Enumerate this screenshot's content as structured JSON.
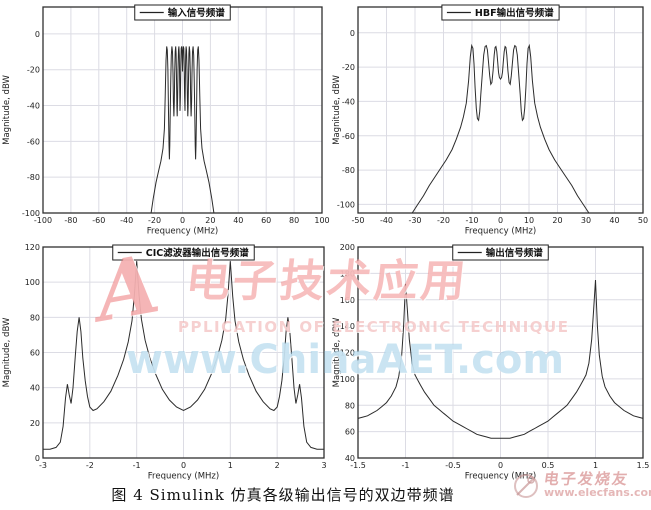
{
  "page": {
    "caption": "图 4  Simulink 仿真各级输出信号的双边带频谱"
  },
  "watermark_center": {
    "big_a": "A",
    "cn": "电子技术应用",
    "en": "PPLICATION OF ELECTRONIC TECHNIQUE",
    "url": "www.ChinaAET.com",
    "pink_color": "#f29494",
    "blue_color": "#9ecee8"
  },
  "watermark_corner": {
    "cn": "电子发烧友",
    "url": "www.elecfans.com",
    "color": "#d68c8c"
  },
  "chart_data": [
    {
      "id": "input-spectrum",
      "type": "line",
      "legend": "输入信号频谱",
      "xlabel": "Frequency (MHz)",
      "ylabel": "Magnitude, dBW",
      "xlim": [
        -100,
        100
      ],
      "ylim": [
        -100,
        15
      ],
      "xticks": [
        -100,
        -80,
        -60,
        -40,
        -20,
        0,
        20,
        40,
        60,
        80,
        100
      ],
      "yticks": [
        -100,
        -80,
        -60,
        -40,
        -20,
        0
      ],
      "grid": true,
      "legend_position": "top-center",
      "line_color": "#2b2b2b",
      "points": [
        [
          -22.5,
          -100
        ],
        [
          -21,
          -92
        ],
        [
          -19,
          -83
        ],
        [
          -17,
          -76
        ],
        [
          -15.5,
          -71
        ],
        [
          -14,
          -64
        ],
        [
          -13,
          -53
        ],
        [
          -12.4,
          -35
        ],
        [
          -11.8,
          -15
        ],
        [
          -11.3,
          -7
        ],
        [
          -10.9,
          -9
        ],
        [
          -10.5,
          -20
        ],
        [
          -10.1,
          -40
        ],
        [
          -9.7,
          -62
        ],
        [
          -9.4,
          -70
        ],
        [
          -9.1,
          -62
        ],
        [
          -8.8,
          -45
        ],
        [
          -8.4,
          -25
        ],
        [
          -8,
          -12
        ],
        [
          -7.6,
          -7
        ],
        [
          -7.2,
          -10
        ],
        [
          -6.8,
          -22
        ],
        [
          -6.5,
          -38
        ],
        [
          -6.2,
          -46
        ],
        [
          -5.9,
          -38
        ],
        [
          -5.6,
          -22
        ],
        [
          -5.2,
          -10
        ],
        [
          -4.9,
          -7
        ],
        [
          -4.6,
          -11
        ],
        [
          -4.3,
          -25
        ],
        [
          -4,
          -41
        ],
        [
          -3.8,
          -46
        ],
        [
          -3.5,
          -36
        ],
        [
          -3.2,
          -20
        ],
        [
          -2.9,
          -9
        ],
        [
          -2.6,
          -7
        ],
        [
          -2.3,
          -12
        ],
        [
          -2,
          -28
        ],
        [
          -1.8,
          -43
        ],
        [
          -1.5,
          -35
        ],
        [
          -1.2,
          -18
        ],
        [
          -0.9,
          -8
        ],
        [
          -0.6,
          -7
        ],
        [
          -0.3,
          -10
        ],
        [
          0,
          -21
        ],
        [
          0.3,
          -10
        ],
        [
          0.6,
          -7
        ],
        [
          0.9,
          -8
        ],
        [
          1.2,
          -18
        ],
        [
          1.5,
          -35
        ],
        [
          1.8,
          -43
        ],
        [
          2,
          -28
        ],
        [
          2.3,
          -12
        ],
        [
          2.6,
          -7
        ],
        [
          2.9,
          -9
        ],
        [
          3.2,
          -20
        ],
        [
          3.5,
          -36
        ],
        [
          3.8,
          -46
        ],
        [
          4,
          -41
        ],
        [
          4.3,
          -25
        ],
        [
          4.6,
          -11
        ],
        [
          4.9,
          -7
        ],
        [
          5.2,
          -10
        ],
        [
          5.6,
          -22
        ],
        [
          5.9,
          -38
        ],
        [
          6.2,
          -46
        ],
        [
          6.5,
          -38
        ],
        [
          6.8,
          -22
        ],
        [
          7.2,
          -10
        ],
        [
          7.6,
          -7
        ],
        [
          8,
          -12
        ],
        [
          8.4,
          -25
        ],
        [
          8.8,
          -45
        ],
        [
          9.1,
          -62
        ],
        [
          9.4,
          -70
        ],
        [
          9.7,
          -62
        ],
        [
          10.1,
          -40
        ],
        [
          10.5,
          -20
        ],
        [
          10.9,
          -9
        ],
        [
          11.3,
          -7
        ],
        [
          11.8,
          -15
        ],
        [
          12.4,
          -35
        ],
        [
          13,
          -53
        ],
        [
          14,
          -64
        ],
        [
          15.5,
          -71
        ],
        [
          17,
          -76
        ],
        [
          19,
          -83
        ],
        [
          21,
          -92
        ],
        [
          22.5,
          -100
        ]
      ]
    },
    {
      "id": "hbf-output-spectrum",
      "type": "line",
      "legend": "HBF输出信号频谱",
      "xlabel": "Frequency (MHz)",
      "ylabel": "Magnitude, dBW",
      "xlim": [
        -50,
        50
      ],
      "ylim": [
        -105,
        15
      ],
      "xticks": [
        -50,
        -40,
        -30,
        -20,
        -10,
        0,
        10,
        20,
        30,
        40,
        50
      ],
      "yticks": [
        -100,
        -80,
        -60,
        -40,
        -20,
        0
      ],
      "grid": true,
      "legend_position": "top-center",
      "line_color": "#2b2b2b",
      "points": [
        [
          -31,
          -105
        ],
        [
          -29,
          -100
        ],
        [
          -27,
          -95
        ],
        [
          -25,
          -89
        ],
        [
          -23,
          -84
        ],
        [
          -21,
          -79
        ],
        [
          -19,
          -74
        ],
        [
          -17,
          -68
        ],
        [
          -15.5,
          -62
        ],
        [
          -14,
          -55
        ],
        [
          -13,
          -49
        ],
        [
          -12,
          -41
        ],
        [
          -11.2,
          -28
        ],
        [
          -10.6,
          -14
        ],
        [
          -10.1,
          -7.5
        ],
        [
          -9.7,
          -9
        ],
        [
          -9.3,
          -18
        ],
        [
          -8.9,
          -32
        ],
        [
          -8.5,
          -44
        ],
        [
          -8.1,
          -50
        ],
        [
          -7.7,
          -51
        ],
        [
          -7.3,
          -46
        ],
        [
          -6.9,
          -36
        ],
        [
          -6.4,
          -24
        ],
        [
          -5.9,
          -13
        ],
        [
          -5.4,
          -8
        ],
        [
          -5,
          -7.5
        ],
        [
          -4.6,
          -10
        ],
        [
          -4.2,
          -17
        ],
        [
          -3.8,
          -25
        ],
        [
          -3.4,
          -30
        ],
        [
          -3,
          -29
        ],
        [
          -2.6,
          -22
        ],
        [
          -2.2,
          -13
        ],
        [
          -1.9,
          -8.5
        ],
        [
          -1.6,
          -8
        ],
        [
          -1.3,
          -11
        ],
        [
          -1,
          -17
        ],
        [
          -0.7,
          -23
        ],
        [
          -0.4,
          -26
        ],
        [
          0,
          -27
        ],
        [
          0.4,
          -26
        ],
        [
          0.7,
          -23
        ],
        [
          1,
          -17
        ],
        [
          1.3,
          -11
        ],
        [
          1.6,
          -8
        ],
        [
          1.9,
          -8.5
        ],
        [
          2.2,
          -13
        ],
        [
          2.6,
          -22
        ],
        [
          3,
          -29
        ],
        [
          3.4,
          -30
        ],
        [
          3.8,
          -25
        ],
        [
          4.2,
          -17
        ],
        [
          4.6,
          -10
        ],
        [
          5,
          -7.5
        ],
        [
          5.4,
          -8
        ],
        [
          5.9,
          -13
        ],
        [
          6.4,
          -24
        ],
        [
          6.9,
          -36
        ],
        [
          7.3,
          -46
        ],
        [
          7.7,
          -51
        ],
        [
          8.1,
          -50
        ],
        [
          8.5,
          -44
        ],
        [
          8.9,
          -32
        ],
        [
          9.3,
          -18
        ],
        [
          9.7,
          -9
        ],
        [
          10.1,
          -7.5
        ],
        [
          10.6,
          -14
        ],
        [
          11.2,
          -28
        ],
        [
          12,
          -41
        ],
        [
          13,
          -49
        ],
        [
          14,
          -55
        ],
        [
          15.5,
          -62
        ],
        [
          17,
          -68
        ],
        [
          19,
          -74
        ],
        [
          21,
          -79
        ],
        [
          23,
          -84
        ],
        [
          25,
          -89
        ],
        [
          27,
          -95
        ],
        [
          29,
          -100
        ],
        [
          31,
          -105
        ]
      ]
    },
    {
      "id": "cic-output-spectrum",
      "type": "line",
      "legend": "CIC滤波器输出信号频谱",
      "xlabel": "Frequency (MHz)",
      "ylabel": "Magnitude, dBW",
      "xlim": [
        -3,
        3
      ],
      "ylim": [
        0,
        120
      ],
      "xticks": [
        -3,
        -2,
        -1,
        0,
        1,
        2,
        3
      ],
      "yticks": [
        0,
        20,
        40,
        60,
        80,
        100,
        120
      ],
      "grid": true,
      "legend_position": "top-center",
      "line_color": "#2b2b2b",
      "points": [
        [
          -3,
          5
        ],
        [
          -2.85,
          5
        ],
        [
          -2.72,
          6
        ],
        [
          -2.63,
          9
        ],
        [
          -2.57,
          18
        ],
        [
          -2.52,
          34
        ],
        [
          -2.48,
          42
        ],
        [
          -2.44,
          36
        ],
        [
          -2.4,
          31
        ],
        [
          -2.36,
          40
        ],
        [
          -2.31,
          58
        ],
        [
          -2.27,
          72
        ],
        [
          -2.23,
          80
        ],
        [
          -2.19,
          72
        ],
        [
          -2.15,
          57
        ],
        [
          -2.1,
          44
        ],
        [
          -2.05,
          35
        ],
        [
          -2,
          29
        ],
        [
          -1.93,
          27
        ],
        [
          -1.85,
          28
        ],
        [
          -1.7,
          32
        ],
        [
          -1.55,
          38
        ],
        [
          -1.4,
          47
        ],
        [
          -1.28,
          56
        ],
        [
          -1.18,
          66
        ],
        [
          -1.1,
          78
        ],
        [
          -1.05,
          92
        ],
        [
          -1,
          112
        ],
        [
          -0.95,
          93
        ],
        [
          -0.9,
          79
        ],
        [
          -0.82,
          67
        ],
        [
          -0.72,
          57
        ],
        [
          -0.6,
          48
        ],
        [
          -0.45,
          39
        ],
        [
          -0.3,
          33
        ],
        [
          -0.15,
          29
        ],
        [
          0,
          27
        ],
        [
          0.15,
          29
        ],
        [
          0.3,
          33
        ],
        [
          0.45,
          39
        ],
        [
          0.6,
          48
        ],
        [
          0.72,
          57
        ],
        [
          0.82,
          67
        ],
        [
          0.9,
          79
        ],
        [
          0.95,
          93
        ],
        [
          1,
          112
        ],
        [
          1.05,
          92
        ],
        [
          1.1,
          78
        ],
        [
          1.18,
          66
        ],
        [
          1.28,
          56
        ],
        [
          1.4,
          47
        ],
        [
          1.55,
          38
        ],
        [
          1.7,
          32
        ],
        [
          1.85,
          28
        ],
        [
          1.93,
          27
        ],
        [
          2,
          29
        ],
        [
          2.05,
          35
        ],
        [
          2.1,
          44
        ],
        [
          2.15,
          57
        ],
        [
          2.19,
          72
        ],
        [
          2.23,
          80
        ],
        [
          2.27,
          72
        ],
        [
          2.31,
          58
        ],
        [
          2.36,
          40
        ],
        [
          2.4,
          31
        ],
        [
          2.44,
          36
        ],
        [
          2.48,
          42
        ],
        [
          2.52,
          34
        ],
        [
          2.57,
          18
        ],
        [
          2.63,
          9
        ],
        [
          2.72,
          6
        ],
        [
          2.85,
          5
        ],
        [
          3,
          5
        ]
      ]
    },
    {
      "id": "output-spectrum",
      "type": "line",
      "legend": "输出信号频谱",
      "xlabel": "Frequency (MHz)",
      "ylabel": "Magnitude, dBW",
      "xlim": [
        -1.5,
        1.5
      ],
      "ylim": [
        40,
        200
      ],
      "xticks": [
        -1.5,
        -1,
        -0.5,
        0,
        0.5,
        1,
        1.5
      ],
      "yticks": [
        40,
        60,
        80,
        100,
        120,
        140,
        160,
        180,
        200
      ],
      "grid": true,
      "legend_position": "top-center",
      "line_color": "#2b2b2b",
      "points": [
        [
          -1.5,
          70
        ],
        [
          -1.45,
          71
        ],
        [
          -1.4,
          72
        ],
        [
          -1.35,
          74
        ],
        [
          -1.3,
          76
        ],
        [
          -1.25,
          79
        ],
        [
          -1.2,
          82
        ],
        [
          -1.15,
          87
        ],
        [
          -1.1,
          94
        ],
        [
          -1.07,
          102
        ],
        [
          -1.04,
          118
        ],
        [
          -1.02,
          140
        ],
        [
          -1,
          172
        ],
        [
          -0.98,
          152
        ],
        [
          -0.96,
          130
        ],
        [
          -0.93,
          112
        ],
        [
          -0.9,
          103
        ],
        [
          -0.87,
          99
        ],
        [
          -0.84,
          95
        ],
        [
          -0.8,
          90
        ],
        [
          -0.75,
          85
        ],
        [
          -0.7,
          80
        ],
        [
          -0.65,
          77
        ],
        [
          -0.6,
          74
        ],
        [
          -0.55,
          71
        ],
        [
          -0.5,
          68
        ],
        [
          -0.45,
          66
        ],
        [
          -0.4,
          64
        ],
        [
          -0.35,
          62
        ],
        [
          -0.3,
          60
        ],
        [
          -0.25,
          58
        ],
        [
          -0.2,
          57
        ],
        [
          -0.15,
          56
        ],
        [
          -0.1,
          55
        ],
        [
          0,
          55
        ],
        [
          0.1,
          55
        ],
        [
          0.15,
          56
        ],
        [
          0.2,
          57
        ],
        [
          0.25,
          58
        ],
        [
          0.3,
          60
        ],
        [
          0.35,
          62
        ],
        [
          0.4,
          64
        ],
        [
          0.45,
          66
        ],
        [
          0.5,
          68
        ],
        [
          0.55,
          71
        ],
        [
          0.6,
          74
        ],
        [
          0.65,
          77
        ],
        [
          0.7,
          80
        ],
        [
          0.75,
          85
        ],
        [
          0.8,
          90
        ],
        [
          0.84,
          95
        ],
        [
          0.87,
          99
        ],
        [
          0.9,
          103
        ],
        [
          0.93,
          112
        ],
        [
          0.96,
          130
        ],
        [
          0.98,
          152
        ],
        [
          1,
          175
        ],
        [
          1.02,
          140
        ],
        [
          1.04,
          118
        ],
        [
          1.07,
          102
        ],
        [
          1.1,
          94
        ],
        [
          1.15,
          87
        ],
        [
          1.2,
          82
        ],
        [
          1.25,
          79
        ],
        [
          1.3,
          76
        ],
        [
          1.35,
          74
        ],
        [
          1.4,
          72
        ],
        [
          1.45,
          71
        ],
        [
          1.5,
          70
        ]
      ]
    }
  ]
}
